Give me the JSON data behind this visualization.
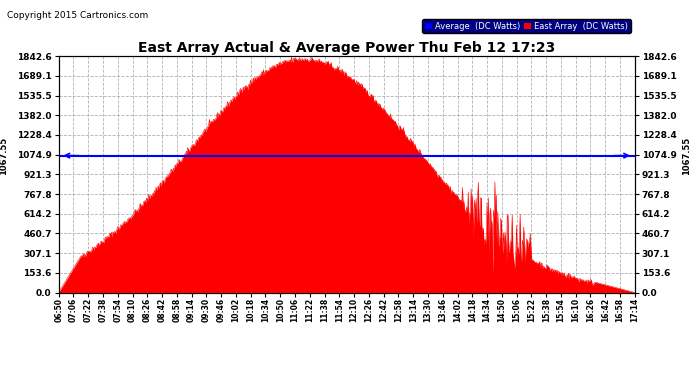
{
  "title": "East Array Actual & Average Power Thu Feb 12 17:23",
  "copyright": "Copyright 2015 Cartronics.com",
  "average_value": 1067.55,
  "yticks": [
    0.0,
    153.6,
    307.1,
    460.7,
    614.2,
    767.8,
    921.3,
    1074.9,
    1228.4,
    1382.0,
    1535.5,
    1689.1,
    1842.6
  ],
  "ymax": 1842.6,
  "ymin": 0.0,
  "fill_color": "#FF0000",
  "average_line_color": "#0000FF",
  "background_color": "#FFFFFF",
  "plot_bg_color": "#FFFFFF",
  "grid_color": "#AAAAAA",
  "title_fontsize": 11,
  "copyright_fontsize": 7,
  "legend_avg_label": "Average  (DC Watts)",
  "legend_east_label": "East Array  (DC Watts)",
  "left_label": "1067.55",
  "right_label": "1067.55",
  "xtick_labels": [
    "06:50",
    "07:06",
    "07:22",
    "07:38",
    "07:54",
    "08:10",
    "08:26",
    "08:42",
    "08:58",
    "09:14",
    "09:30",
    "09:46",
    "10:02",
    "10:18",
    "10:34",
    "10:50",
    "11:06",
    "11:22",
    "11:38",
    "11:54",
    "12:10",
    "12:26",
    "12:42",
    "12:58",
    "13:14",
    "13:30",
    "13:46",
    "14:02",
    "14:18",
    "14:34",
    "14:50",
    "15:06",
    "15:22",
    "15:38",
    "15:54",
    "16:10",
    "16:26",
    "16:42",
    "16:58",
    "17:14"
  ],
  "total_minutes": 624
}
